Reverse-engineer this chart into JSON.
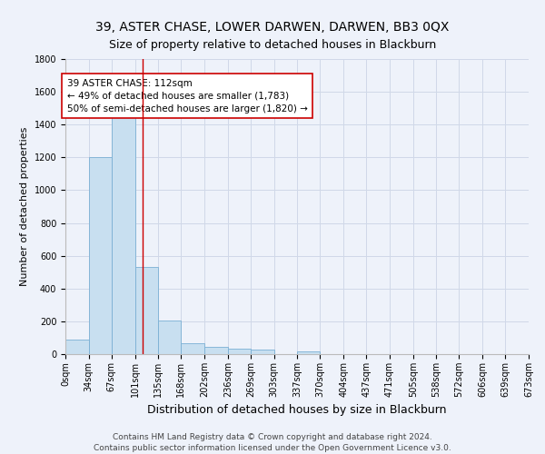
{
  "title": "39, ASTER CHASE, LOWER DARWEN, DARWEN, BB3 0QX",
  "subtitle": "Size of property relative to detached houses in Blackburn",
  "xlabel": "Distribution of detached houses by size in Blackburn",
  "ylabel": "Number of detached properties",
  "bar_color": "#c8dff0",
  "bar_edge_color": "#7aafd4",
  "bin_edges": [
    0,
    34,
    67,
    101,
    135,
    168,
    202,
    236,
    269,
    303,
    337,
    370,
    404,
    437,
    471,
    505,
    538,
    572,
    606,
    639,
    673
  ],
  "bin_labels": [
    "0sqm",
    "34sqm",
    "67sqm",
    "101sqm",
    "135sqm",
    "168sqm",
    "202sqm",
    "236sqm",
    "269sqm",
    "303sqm",
    "337sqm",
    "370sqm",
    "404sqm",
    "437sqm",
    "471sqm",
    "505sqm",
    "538sqm",
    "572sqm",
    "606sqm",
    "639sqm",
    "673sqm"
  ],
  "bar_heights": [
    90,
    1200,
    1450,
    530,
    205,
    65,
    45,
    35,
    28,
    0,
    18,
    0,
    0,
    0,
    0,
    0,
    0,
    0,
    0,
    0
  ],
  "property_size": 112,
  "vline_color": "#cc0000",
  "annotation_text": "39 ASTER CHASE: 112sqm\n← 49% of detached houses are smaller (1,783)\n50% of semi-detached houses are larger (1,820) →",
  "annotation_box_color": "#ffffff",
  "annotation_box_edge": "#cc0000",
  "ylim": [
    0,
    1800
  ],
  "yticks": [
    0,
    200,
    400,
    600,
    800,
    1000,
    1200,
    1400,
    1600,
    1800
  ],
  "footnote": "Contains HM Land Registry data © Crown copyright and database right 2024.\nContains public sector information licensed under the Open Government Licence v3.0.",
  "background_color": "#eef2fa",
  "grid_color": "#d0d8e8",
  "title_fontsize": 10,
  "subtitle_fontsize": 9,
  "axis_label_fontsize": 8,
  "tick_fontsize": 7,
  "annotation_fontsize": 7.5,
  "footnote_fontsize": 6.5
}
